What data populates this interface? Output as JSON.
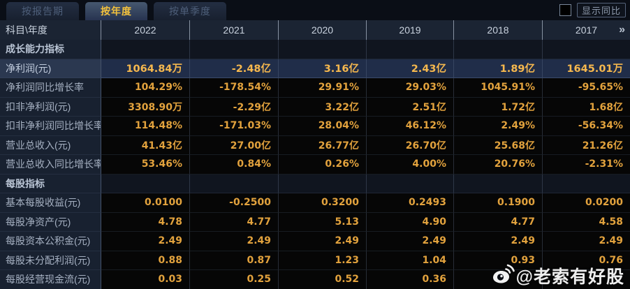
{
  "tabs": [
    {
      "name": "tab-by-report-period",
      "label": "按报告期",
      "active": false
    },
    {
      "name": "tab-by-year",
      "label": "按年度",
      "active": true
    },
    {
      "name": "tab-by-single-quarter",
      "label": "按单季度",
      "active": false
    }
  ],
  "toolbar": {
    "show_yoy_label": "显示同比",
    "yoy_checked": false
  },
  "table": {
    "corner_label": "科目\\年度",
    "years": [
      "2022",
      "2021",
      "2020",
      "2019",
      "2018",
      "2017"
    ],
    "more_icon": "»",
    "rows": [
      {
        "type": "section",
        "label": "成长能力指标",
        "values": [
          "",
          "",
          "",
          "",
          "",
          ""
        ]
      },
      {
        "type": "data",
        "highlight": true,
        "label": "净利润(元)",
        "values": [
          "1064.84万",
          "-2.48亿",
          "3.16亿",
          "2.43亿",
          "1.89亿",
          "1645.01万"
        ]
      },
      {
        "type": "data",
        "label": "净利润同比增长率",
        "values": [
          "104.29%",
          "-178.54%",
          "29.91%",
          "29.03%",
          "1045.91%",
          "-95.65%"
        ]
      },
      {
        "type": "data",
        "label": "扣非净利润(元)",
        "values": [
          "3308.90万",
          "-2.29亿",
          "3.22亿",
          "2.51亿",
          "1.72亿",
          "1.68亿"
        ]
      },
      {
        "type": "data",
        "label": "扣非净利润同比增长率",
        "values": [
          "114.48%",
          "-171.03%",
          "28.04%",
          "46.12%",
          "2.49%",
          "-56.34%"
        ]
      },
      {
        "type": "data",
        "label": "营业总收入(元)",
        "values": [
          "41.43亿",
          "27.00亿",
          "26.77亿",
          "26.70亿",
          "25.68亿",
          "21.26亿"
        ]
      },
      {
        "type": "data",
        "label": "营业总收入同比增长率",
        "values": [
          "53.46%",
          "0.84%",
          "0.26%",
          "4.00%",
          "20.76%",
          "-2.31%"
        ]
      },
      {
        "type": "section",
        "label": "每股指标",
        "values": [
          "",
          "",
          "",
          "",
          "",
          ""
        ]
      },
      {
        "type": "data",
        "label": "基本每股收益(元)",
        "values": [
          "0.0100",
          "-0.2500",
          "0.3200",
          "0.2493",
          "0.1900",
          "0.0200"
        ]
      },
      {
        "type": "data",
        "label": "每股净资产(元)",
        "values": [
          "4.78",
          "4.77",
          "5.13",
          "4.90",
          "4.77",
          "4.58"
        ]
      },
      {
        "type": "data",
        "label": "每股资本公积金(元)",
        "values": [
          "2.49",
          "2.49",
          "2.49",
          "2.49",
          "2.49",
          "2.49"
        ]
      },
      {
        "type": "data",
        "label": "每股未分配利润(元)",
        "values": [
          "0.88",
          "0.87",
          "1.23",
          "1.04",
          "0.93",
          "0.76"
        ]
      },
      {
        "type": "data",
        "label": "每股经营现金流(元)",
        "values": [
          "0.03",
          "0.25",
          "0.52",
          "0.36",
          "",
          ""
        ]
      }
    ]
  },
  "watermark": {
    "text": "@老索有好股"
  },
  "colors": {
    "value_gold": "#e2a23d",
    "highlight_gold": "#f6b84e",
    "active_tab_text": "#f2c13d",
    "highlight_row_bg": "#202d49",
    "label_col_bg": "#182130",
    "header_bg": "#1b2433",
    "cell_bg": "#060606"
  }
}
